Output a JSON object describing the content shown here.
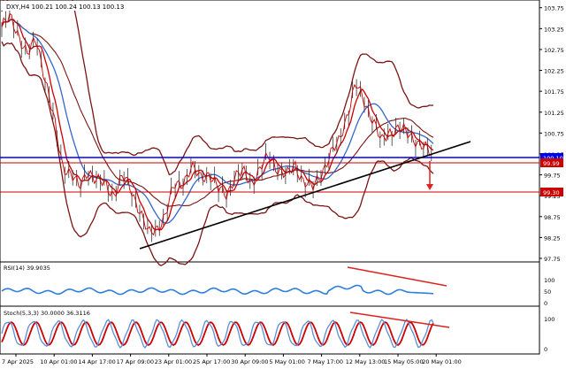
{
  "header": {
    "symbol_label": "DXY,H4",
    "ohlc": "100.21 100.24 100.13 100.13"
  },
  "price_axis": {
    "ticks": [
      "103.75",
      "103.25",
      "102.75",
      "102.25",
      "101.75",
      "101.25",
      "100.75",
      "100.25",
      "99.75",
      "99.25",
      "98.75",
      "98.25",
      "97.75"
    ],
    "current_price_tag": "100.10",
    "level_tag_1": "99.99",
    "level_tag_2": "99.30"
  },
  "rsi": {
    "label": "RSI(14) 39.9035",
    "ticks": [
      "100",
      "50",
      "0"
    ]
  },
  "stoch": {
    "label": "Stoch(5,3,3) 30.0000 36.3116",
    "ticks": [
      "100",
      "0"
    ]
  },
  "time_axis": {
    "labels": [
      "7 Apr 2025",
      "10 Apr 01:00",
      "14 Apr 17:00",
      "17 Apr 09:00",
      "23 Apr 01:00",
      "25 Apr 17:00",
      "30 Apr 09:00",
      "5 May 01:00",
      "7 May 17:00",
      "12 May 13:00",
      "15 May 05:00",
      "20 May 01:00"
    ]
  },
  "colors": {
    "price": "#cc0000",
    "bands": "#7a1414",
    "ma_blue": "#3366cc",
    "ma_red": "#cc0000",
    "trendline": "#000000",
    "blue_level": "#0000ee",
    "support": "#cc0000",
    "rsi": "#2f7fdc",
    "stoch_main": "#5b8fd6",
    "stoch_signal": "#cc0000",
    "divergence": "#dd2222"
  },
  "chart_data": {
    "type": "line",
    "title": "DXY,H4",
    "ylim": [
      97.75,
      103.85
    ],
    "x_labels": [
      "7 Apr 2025",
      "10 Apr 01:00",
      "14 Apr 17:00",
      "17 Apr 09:00",
      "23 Apr 01:00",
      "25 Apr 17:00",
      "30 Apr 09:00",
      "5 May 01:00",
      "7 May 17:00",
      "12 May 13:00",
      "15 May 05:00",
      "20 May 01:00"
    ],
    "price_series": [
      103.3,
      103.5,
      103.1,
      102.6,
      103.0,
      102.1,
      101.1,
      100.0,
      99.8,
      99.4,
      99.9,
      99.6,
      99.5,
      99.3,
      99.7,
      99.4,
      98.9,
      98.3,
      98.5,
      98.8,
      99.5,
      99.6,
      99.9,
      99.7,
      99.8,
      99.4,
      99.3,
      99.7,
      99.8,
      99.6,
      99.9,
      100.2,
      99.9,
      99.7,
      100.0,
      99.6,
      99.4,
      99.8,
      100.2,
      100.5,
      101.2,
      101.9,
      101.5,
      101.1,
      100.5,
      100.8,
      100.9,
      100.7,
      100.6,
      100.4,
      100.13
    ],
    "series": [
      {
        "name": "DXY",
        "values": [
          103.3,
          103.5,
          103.1,
          102.6,
          103.0,
          102.1,
          101.1,
          100.0,
          99.8,
          99.4,
          99.9,
          99.6,
          99.5,
          99.3,
          99.7,
          99.4,
          98.9,
          98.3,
          98.5,
          98.8,
          99.5,
          99.6,
          99.9,
          99.7,
          99.8,
          99.4,
          99.3,
          99.7,
          99.8,
          99.6,
          99.9,
          100.2,
          99.9,
          99.7,
          100.0,
          99.6,
          99.4,
          99.8,
          100.2,
          100.5,
          101.2,
          101.9,
          101.5,
          101.1,
          100.5,
          100.8,
          100.9,
          100.7,
          100.6,
          100.4,
          100.13
        ]
      }
    ],
    "levels": {
      "blue_line": 100.1,
      "tag_line": 99.99,
      "support": 99.3
    },
    "trendline": {
      "from": 98.1,
      "to": 100.55
    },
    "rsi": {
      "value": 39.9035,
      "range": [
        0,
        100
      ]
    },
    "stoch": {
      "main": 30.0,
      "signal": 36.3116,
      "range": [
        0,
        100
      ]
    }
  }
}
